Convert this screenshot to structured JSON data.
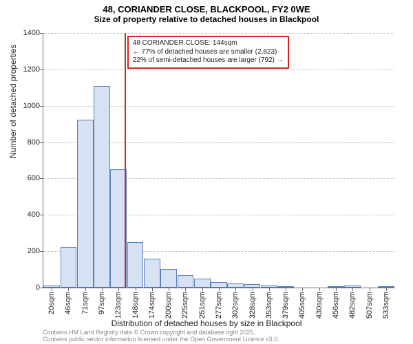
{
  "title": "48, CORIANDER CLOSE, BLACKPOOL, FY2 0WE",
  "subtitle": "Size of property relative to detached houses in Blackpool",
  "chart": {
    "type": "histogram",
    "ylabel": "Number of detached properties",
    "xlabel": "Distribution of detached houses by size in Blackpool",
    "ylim": [
      0,
      1400
    ],
    "ytick_step": 200,
    "bar_fill": "#d6e2f3",
    "bar_border": "#5b7fb5",
    "grid_color": "#bbbbbb",
    "bg": "#ffffff",
    "x_labels": [
      "20sqm",
      "46sqm",
      "71sqm",
      "97sqm",
      "123sqm",
      "148sqm",
      "174sqm",
      "200sqm",
      "225sqm",
      "251sqm",
      "277sqm",
      "302sqm",
      "328sqm",
      "353sqm",
      "379sqm",
      "405sqm",
      "430sqm",
      "456sqm",
      "482sqm",
      "507sqm",
      "533sqm"
    ],
    "values": [
      12,
      225,
      925,
      1108,
      650,
      250,
      160,
      102,
      70,
      50,
      30,
      22,
      18,
      10,
      5,
      0,
      0,
      2,
      12,
      0,
      2
    ],
    "marker": {
      "bin_index": 4,
      "phase": 0.85,
      "color": "#d62728"
    },
    "annotation": {
      "lines": [
        "48 CORIANDER CLOSE: 144sqm",
        "← 77% of detached houses are smaller (2,823)",
        "22% of semi-detached houses are larger (792) →"
      ],
      "border_color": "#d62728"
    }
  },
  "footer": {
    "line1": "Contains HM Land Registry data © Crown copyright and database right 2025.",
    "line2": "Contains public sector information licensed under the Open Government Licence v3.0."
  }
}
